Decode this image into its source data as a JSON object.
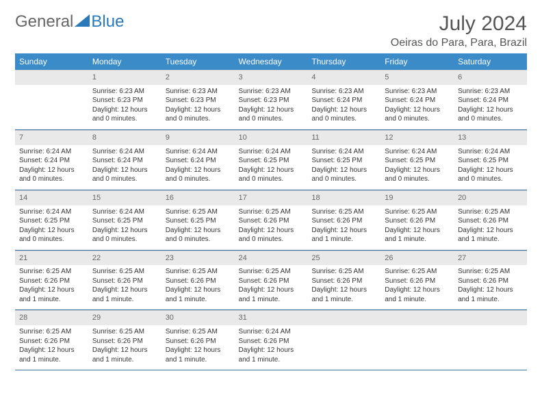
{
  "brand": {
    "part1": "General",
    "part2": "Blue"
  },
  "title": "July 2024",
  "location": "Oeiras do Para, Para, Brazil",
  "colors": {
    "header_bg": "#3b8bc9",
    "header_text": "#ffffff",
    "daynum_bg": "#e9e9e9",
    "daynum_text": "#666666",
    "rule": "#3b6fa0",
    "brand_accent": "#2a7ab9",
    "text": "#333333"
  },
  "weekdays": [
    "Sunday",
    "Monday",
    "Tuesday",
    "Wednesday",
    "Thursday",
    "Friday",
    "Saturday"
  ],
  "weeks": [
    [
      {
        "n": "",
        "sr": "",
        "ss": "",
        "dl": ""
      },
      {
        "n": "1",
        "sr": "Sunrise: 6:23 AM",
        "ss": "Sunset: 6:23 PM",
        "dl": "Daylight: 12 hours and 0 minutes."
      },
      {
        "n": "2",
        "sr": "Sunrise: 6:23 AM",
        "ss": "Sunset: 6:23 PM",
        "dl": "Daylight: 12 hours and 0 minutes."
      },
      {
        "n": "3",
        "sr": "Sunrise: 6:23 AM",
        "ss": "Sunset: 6:23 PM",
        "dl": "Daylight: 12 hours and 0 minutes."
      },
      {
        "n": "4",
        "sr": "Sunrise: 6:23 AM",
        "ss": "Sunset: 6:24 PM",
        "dl": "Daylight: 12 hours and 0 minutes."
      },
      {
        "n": "5",
        "sr": "Sunrise: 6:23 AM",
        "ss": "Sunset: 6:24 PM",
        "dl": "Daylight: 12 hours and 0 minutes."
      },
      {
        "n": "6",
        "sr": "Sunrise: 6:23 AM",
        "ss": "Sunset: 6:24 PM",
        "dl": "Daylight: 12 hours and 0 minutes."
      }
    ],
    [
      {
        "n": "7",
        "sr": "Sunrise: 6:24 AM",
        "ss": "Sunset: 6:24 PM",
        "dl": "Daylight: 12 hours and 0 minutes."
      },
      {
        "n": "8",
        "sr": "Sunrise: 6:24 AM",
        "ss": "Sunset: 6:24 PM",
        "dl": "Daylight: 12 hours and 0 minutes."
      },
      {
        "n": "9",
        "sr": "Sunrise: 6:24 AM",
        "ss": "Sunset: 6:24 PM",
        "dl": "Daylight: 12 hours and 0 minutes."
      },
      {
        "n": "10",
        "sr": "Sunrise: 6:24 AM",
        "ss": "Sunset: 6:25 PM",
        "dl": "Daylight: 12 hours and 0 minutes."
      },
      {
        "n": "11",
        "sr": "Sunrise: 6:24 AM",
        "ss": "Sunset: 6:25 PM",
        "dl": "Daylight: 12 hours and 0 minutes."
      },
      {
        "n": "12",
        "sr": "Sunrise: 6:24 AM",
        "ss": "Sunset: 6:25 PM",
        "dl": "Daylight: 12 hours and 0 minutes."
      },
      {
        "n": "13",
        "sr": "Sunrise: 6:24 AM",
        "ss": "Sunset: 6:25 PM",
        "dl": "Daylight: 12 hours and 0 minutes."
      }
    ],
    [
      {
        "n": "14",
        "sr": "Sunrise: 6:24 AM",
        "ss": "Sunset: 6:25 PM",
        "dl": "Daylight: 12 hours and 0 minutes."
      },
      {
        "n": "15",
        "sr": "Sunrise: 6:24 AM",
        "ss": "Sunset: 6:25 PM",
        "dl": "Daylight: 12 hours and 0 minutes."
      },
      {
        "n": "16",
        "sr": "Sunrise: 6:25 AM",
        "ss": "Sunset: 6:25 PM",
        "dl": "Daylight: 12 hours and 0 minutes."
      },
      {
        "n": "17",
        "sr": "Sunrise: 6:25 AM",
        "ss": "Sunset: 6:26 PM",
        "dl": "Daylight: 12 hours and 0 minutes."
      },
      {
        "n": "18",
        "sr": "Sunrise: 6:25 AM",
        "ss": "Sunset: 6:26 PM",
        "dl": "Daylight: 12 hours and 1 minute."
      },
      {
        "n": "19",
        "sr": "Sunrise: 6:25 AM",
        "ss": "Sunset: 6:26 PM",
        "dl": "Daylight: 12 hours and 1 minute."
      },
      {
        "n": "20",
        "sr": "Sunrise: 6:25 AM",
        "ss": "Sunset: 6:26 PM",
        "dl": "Daylight: 12 hours and 1 minute."
      }
    ],
    [
      {
        "n": "21",
        "sr": "Sunrise: 6:25 AM",
        "ss": "Sunset: 6:26 PM",
        "dl": "Daylight: 12 hours and 1 minute."
      },
      {
        "n": "22",
        "sr": "Sunrise: 6:25 AM",
        "ss": "Sunset: 6:26 PM",
        "dl": "Daylight: 12 hours and 1 minute."
      },
      {
        "n": "23",
        "sr": "Sunrise: 6:25 AM",
        "ss": "Sunset: 6:26 PM",
        "dl": "Daylight: 12 hours and 1 minute."
      },
      {
        "n": "24",
        "sr": "Sunrise: 6:25 AM",
        "ss": "Sunset: 6:26 PM",
        "dl": "Daylight: 12 hours and 1 minute."
      },
      {
        "n": "25",
        "sr": "Sunrise: 6:25 AM",
        "ss": "Sunset: 6:26 PM",
        "dl": "Daylight: 12 hours and 1 minute."
      },
      {
        "n": "26",
        "sr": "Sunrise: 6:25 AM",
        "ss": "Sunset: 6:26 PM",
        "dl": "Daylight: 12 hours and 1 minute."
      },
      {
        "n": "27",
        "sr": "Sunrise: 6:25 AM",
        "ss": "Sunset: 6:26 PM",
        "dl": "Daylight: 12 hours and 1 minute."
      }
    ],
    [
      {
        "n": "28",
        "sr": "Sunrise: 6:25 AM",
        "ss": "Sunset: 6:26 PM",
        "dl": "Daylight: 12 hours and 1 minute."
      },
      {
        "n": "29",
        "sr": "Sunrise: 6:25 AM",
        "ss": "Sunset: 6:26 PM",
        "dl": "Daylight: 12 hours and 1 minute."
      },
      {
        "n": "30",
        "sr": "Sunrise: 6:25 AM",
        "ss": "Sunset: 6:26 PM",
        "dl": "Daylight: 12 hours and 1 minute."
      },
      {
        "n": "31",
        "sr": "Sunrise: 6:24 AM",
        "ss": "Sunset: 6:26 PM",
        "dl": "Daylight: 12 hours and 1 minute."
      },
      {
        "n": "",
        "sr": "",
        "ss": "",
        "dl": ""
      },
      {
        "n": "",
        "sr": "",
        "ss": "",
        "dl": ""
      },
      {
        "n": "",
        "sr": "",
        "ss": "",
        "dl": ""
      }
    ]
  ]
}
